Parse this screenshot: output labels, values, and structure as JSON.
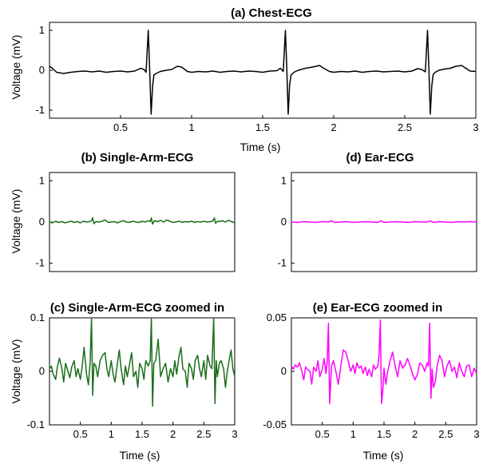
{
  "chart_data": [
    {
      "id": "a",
      "type": "line",
      "title": "(a) Chest-ECG",
      "xlabel": "Time (s)",
      "ylabel": "Voltage (mV)",
      "xlim": [
        0,
        3
      ],
      "ylim": [
        -1.2,
        1.2
      ],
      "xticks": [
        0.5,
        1,
        1.5,
        2,
        2.5,
        3
      ],
      "xticklabels": [
        "0.5",
        "1",
        "1.5",
        "2",
        "2.5",
        "3"
      ],
      "yticks": [
        -1,
        0,
        1
      ],
      "yticklabels": [
        "-1",
        "0",
        "1"
      ],
      "grid": false,
      "series": [
        {
          "color": "#000000",
          "x": [
            0,
            0.02,
            0.05,
            0.1,
            0.15,
            0.2,
            0.25,
            0.3,
            0.35,
            0.4,
            0.45,
            0.5,
            0.55,
            0.6,
            0.64,
            0.665,
            0.68,
            0.695,
            0.705,
            0.715,
            0.725,
            0.735,
            0.75,
            0.78,
            0.82,
            0.86,
            0.9,
            0.93,
            0.97,
            1.0,
            1.05,
            1.1,
            1.15,
            1.2,
            1.25,
            1.3,
            1.35,
            1.4,
            1.45,
            1.5,
            1.55,
            1.6,
            1.625,
            1.645,
            1.66,
            1.67,
            1.68,
            1.69,
            1.7,
            1.72,
            1.75,
            1.8,
            1.85,
            1.9,
            1.93,
            1.97,
            2.0,
            2.05,
            2.1,
            2.15,
            2.2,
            2.25,
            2.3,
            2.35,
            2.4,
            2.45,
            2.5,
            2.55,
            2.59,
            2.62,
            2.645,
            2.66,
            2.67,
            2.68,
            2.69,
            2.7,
            2.715,
            2.74,
            2.78,
            2.82,
            2.86,
            2.9,
            2.93,
            2.96,
            3.0
          ],
          "y": [
            0.1,
            0.05,
            -0.05,
            -0.08,
            -0.05,
            -0.03,
            -0.02,
            -0.04,
            -0.02,
            -0.05,
            -0.03,
            -0.02,
            -0.04,
            -0.02,
            0.05,
            0.02,
            -0.05,
            1.0,
            0.0,
            -1.1,
            -0.4,
            -0.12,
            -0.08,
            -0.03,
            0.0,
            0.02,
            0.1,
            0.08,
            -0.03,
            -0.05,
            -0.03,
            -0.04,
            -0.02,
            -0.05,
            -0.03,
            -0.02,
            -0.04,
            -0.02,
            -0.03,
            -0.05,
            -0.02,
            -0.01,
            0.05,
            -0.03,
            1.0,
            0.0,
            -1.1,
            -0.35,
            -0.12,
            -0.05,
            0.0,
            0.05,
            0.08,
            0.12,
            0.05,
            -0.03,
            -0.05,
            -0.03,
            -0.04,
            -0.02,
            -0.05,
            -0.03,
            -0.02,
            -0.04,
            -0.03,
            -0.02,
            -0.04,
            -0.02,
            0.04,
            0.02,
            -0.04,
            1.0,
            0.0,
            -1.1,
            -0.4,
            -0.1,
            -0.05,
            0.0,
            0.03,
            0.05,
            0.1,
            0.12,
            0.05,
            -0.02,
            -0.03
          ]
        }
      ]
    },
    {
      "id": "b",
      "type": "line",
      "title": "(b) Single-Arm-ECG",
      "xlabel": "",
      "ylabel": "Voltage (mV)",
      "xlim": [
        0,
        3
      ],
      "ylim": [
        -1.2,
        1.2
      ],
      "yticks": [
        -1,
        0,
        1
      ],
      "yticklabels": [
        "-1",
        "0",
        "1"
      ],
      "grid": false,
      "series": [
        {
          "color": "#1a6e1a",
          "x": [
            0,
            0.05,
            0.1,
            0.15,
            0.2,
            0.25,
            0.3,
            0.35,
            0.4,
            0.45,
            0.5,
            0.55,
            0.6,
            0.65,
            0.68,
            0.7,
            0.72,
            0.75,
            0.8,
            0.85,
            0.9,
            0.95,
            1.0,
            1.05,
            1.1,
            1.15,
            1.2,
            1.25,
            1.3,
            1.35,
            1.4,
            1.45,
            1.5,
            1.55,
            1.6,
            1.63,
            1.65,
            1.67,
            1.7,
            1.75,
            1.8,
            1.85,
            1.9,
            1.95,
            2.0,
            2.05,
            2.1,
            2.15,
            2.2,
            2.25,
            2.3,
            2.35,
            2.4,
            2.45,
            2.5,
            2.55,
            2.6,
            2.64,
            2.67,
            2.69,
            2.72,
            2.75,
            2.8,
            2.85,
            2.9,
            2.95,
            3.0
          ],
          "y": [
            0.0,
            -0.02,
            0.02,
            -0.01,
            0.01,
            -0.02,
            0.0,
            0.02,
            -0.01,
            0.01,
            -0.02,
            0.02,
            0.0,
            0.01,
            0.03,
            0.1,
            -0.04,
            0.01,
            0.0,
            0.02,
            0.05,
            -0.01,
            0.0,
            0.01,
            -0.02,
            0.01,
            0.03,
            0.0,
            -0.01,
            0.02,
            0.0,
            -0.01,
            0.02,
            0.0,
            0.03,
            0.01,
            0.1,
            -0.05,
            0.03,
            0.01,
            0.04,
            0.0,
            0.05,
            0.02,
            -0.01,
            0.0,
            0.02,
            -0.01,
            0.01,
            0.0,
            0.02,
            -0.01,
            0.01,
            0.0,
            0.02,
            0.0,
            0.01,
            0.02,
            0.1,
            -0.03,
            0.02,
            0.01,
            0.03,
            0.0,
            0.04,
            0.01,
            -0.02
          ]
        }
      ]
    },
    {
      "id": "d",
      "type": "line",
      "title": "(d) Ear-ECG",
      "xlabel": "",
      "ylabel": "",
      "xlim": [
        0,
        3
      ],
      "ylim": [
        -1.2,
        1.2
      ],
      "yticks": [
        -1,
        0,
        1
      ],
      "yticklabels": [
        "-1",
        "0",
        "1"
      ],
      "grid": false,
      "series": [
        {
          "color": "#ff00ff",
          "x": [
            0,
            0.1,
            0.2,
            0.3,
            0.4,
            0.5,
            0.6,
            0.65,
            0.7,
            0.8,
            0.9,
            1.0,
            1.1,
            1.2,
            1.3,
            1.4,
            1.45,
            1.5,
            1.6,
            1.7,
            1.8,
            1.9,
            2.0,
            2.1,
            2.2,
            2.25,
            2.3,
            2.4,
            2.5,
            2.6,
            2.7,
            2.8,
            2.9,
            3.0
          ],
          "y": [
            0.0,
            -0.01,
            0.01,
            0.0,
            -0.01,
            0.01,
            0.0,
            0.03,
            -0.01,
            0.0,
            0.01,
            -0.01,
            0.0,
            0.01,
            0.0,
            -0.01,
            0.03,
            -0.01,
            0.0,
            0.01,
            0.0,
            -0.01,
            0.01,
            0.0,
            0.0,
            0.03,
            -0.01,
            0.01,
            0.0,
            -0.01,
            0.01,
            0.0,
            0.01,
            0.0
          ]
        }
      ]
    },
    {
      "id": "c",
      "type": "line",
      "title": "(c) Single-Arm-ECG zoomed in",
      "xlabel": "Time (s)",
      "ylabel": "Voltage (mV)",
      "xlim": [
        0,
        3
      ],
      "ylim": [
        -0.1,
        0.1
      ],
      "xticks": [
        0.5,
        1,
        1.5,
        2,
        2.5,
        3
      ],
      "xticklabels": [
        "0.5",
        "1",
        "1.5",
        "2",
        "2.5",
        "3"
      ],
      "yticks": [
        -0.1,
        0,
        0.1
      ],
      "yticklabels": [
        "-0.1",
        "0",
        "0.1"
      ],
      "grid": false,
      "series": [
        {
          "color": "#1a6e1a",
          "x": [
            0,
            0.03,
            0.06,
            0.1,
            0.13,
            0.16,
            0.2,
            0.23,
            0.26,
            0.3,
            0.33,
            0.36,
            0.4,
            0.43,
            0.46,
            0.5,
            0.53,
            0.56,
            0.6,
            0.63,
            0.66,
            0.68,
            0.7,
            0.72,
            0.75,
            0.78,
            0.82,
            0.86,
            0.9,
            0.93,
            0.96,
            1.0,
            1.03,
            1.06,
            1.1,
            1.13,
            1.16,
            1.2,
            1.23,
            1.26,
            1.3,
            1.33,
            1.36,
            1.4,
            1.43,
            1.46,
            1.5,
            1.53,
            1.56,
            1.6,
            1.63,
            1.65,
            1.67,
            1.69,
            1.72,
            1.76,
            1.8,
            1.84,
            1.88,
            1.92,
            1.96,
            2.0,
            2.03,
            2.06,
            2.1,
            2.13,
            2.16,
            2.2,
            2.23,
            2.26,
            2.3,
            2.33,
            2.36,
            2.4,
            2.43,
            2.46,
            2.5,
            2.53,
            2.56,
            2.6,
            2.63,
            2.66,
            2.68,
            2.7,
            2.72,
            2.75,
            2.78,
            2.82,
            2.85,
            2.88,
            2.91,
            2.94,
            2.97,
            3.0
          ],
          "y": [
            0.005,
            0.01,
            -0.005,
            -0.015,
            0.01,
            0.025,
            0.005,
            -0.02,
            0.015,
            0.0,
            -0.012,
            0.008,
            0.02,
            -0.01,
            0.005,
            -0.015,
            0.01,
            0.045,
            -0.005,
            -0.025,
            0.02,
            0.1,
            -0.045,
            0.015,
            0.01,
            -0.01,
            0.02,
            0.03,
            0.035,
            0.005,
            -0.01,
            0.02,
            -0.005,
            -0.02,
            0.015,
            0.04,
            0.005,
            -0.025,
            0.01,
            -0.01,
            0.015,
            0.035,
            -0.01,
            0.0,
            -0.03,
            0.015,
            0.005,
            -0.015,
            0.02,
            0.01,
            0.02,
            0.1,
            -0.065,
            0.015,
            0.02,
            0.06,
            -0.01,
            0.005,
            0.015,
            -0.02,
            0.005,
            -0.01,
            0.02,
            -0.005,
            0.03,
            0.045,
            0.005,
            0.0,
            -0.03,
            0.015,
            0.005,
            -0.015,
            0.02,
            0.03,
            0.005,
            -0.01,
            0.02,
            -0.015,
            0.03,
            0.01,
            0.005,
            0.1,
            -0.06,
            0.02,
            -0.01,
            0.015,
            0.02,
            0.005,
            -0.03,
            0.0,
            0.02,
            0.04,
            0.005,
            -0.01
          ]
        }
      ]
    },
    {
      "id": "e",
      "type": "line",
      "title": "(e) Ear-ECG zoomed in",
      "xlabel": "Time (s)",
      "ylabel": "",
      "xlim": [
        0,
        3
      ],
      "ylim": [
        -0.05,
        0.05
      ],
      "xticks": [
        0.5,
        1,
        1.5,
        2,
        2.5,
        3
      ],
      "xticklabels": [
        "0.5",
        "1",
        "1.5",
        "2",
        "2.5",
        "3"
      ],
      "yticks": [
        -0.05,
        0,
        0.05
      ],
      "yticklabels": [
        "-0.05",
        "0",
        "0.05"
      ],
      "grid": false,
      "series": [
        {
          "color": "#ff00ff",
          "x": [
            0,
            0.03,
            0.06,
            0.1,
            0.13,
            0.16,
            0.2,
            0.23,
            0.26,
            0.3,
            0.33,
            0.36,
            0.4,
            0.43,
            0.46,
            0.5,
            0.53,
            0.56,
            0.58,
            0.6,
            0.62,
            0.65,
            0.68,
            0.72,
            0.76,
            0.8,
            0.84,
            0.88,
            0.92,
            0.96,
            1.0,
            1.03,
            1.06,
            1.1,
            1.13,
            1.16,
            1.2,
            1.23,
            1.26,
            1.3,
            1.33,
            1.36,
            1.4,
            1.42,
            1.44,
            1.46,
            1.48,
            1.5,
            1.53,
            1.56,
            1.6,
            1.64,
            1.68,
            1.72,
            1.76,
            1.8,
            1.84,
            1.88,
            1.92,
            1.96,
            2.0,
            2.04,
            2.08,
            2.12,
            2.16,
            2.2,
            2.22,
            2.24,
            2.26,
            2.28,
            2.3,
            2.33,
            2.36,
            2.4,
            2.44,
            2.48,
            2.52,
            2.56,
            2.6,
            2.64,
            2.68,
            2.72,
            2.76,
            2.8,
            2.84,
            2.88,
            2.92,
            2.96,
            3.0
          ],
          "y": [
            0.005,
            0.002,
            0.006,
            0.004,
            0.008,
            0.002,
            -0.008,
            0.004,
            0.002,
            0.0,
            -0.012,
            0.004,
            0.0,
            0.01,
            -0.005,
            0.002,
            0.012,
            -0.002,
            0.01,
            0.045,
            -0.03,
            0.005,
            0.01,
            0.0,
            -0.012,
            0.005,
            0.02,
            0.018,
            0.01,
            0.0,
            0.006,
            -0.002,
            0.008,
            0.003,
            0.005,
            -0.002,
            0.004,
            -0.004,
            0.002,
            -0.005,
            0.006,
            0.002,
            0.005,
            0.015,
            0.048,
            -0.03,
            -0.018,
            0.003,
            -0.012,
            0.0,
            0.01,
            0.018,
            0.005,
            -0.005,
            0.01,
            0.003,
            0.006,
            0.012,
            0.006,
            -0.002,
            -0.008,
            -0.003,
            0.008,
            0.006,
            0.0,
            0.008,
            0.005,
            0.045,
            -0.025,
            0.002,
            -0.015,
            -0.01,
            0.005,
            0.015,
            0.01,
            -0.005,
            0.005,
            0.01,
            0.0,
            0.004,
            -0.006,
            0.008,
            0.0,
            -0.005,
            0.005,
            0.006,
            -0.005,
            0.003,
            -0.002
          ]
        }
      ]
    }
  ]
}
